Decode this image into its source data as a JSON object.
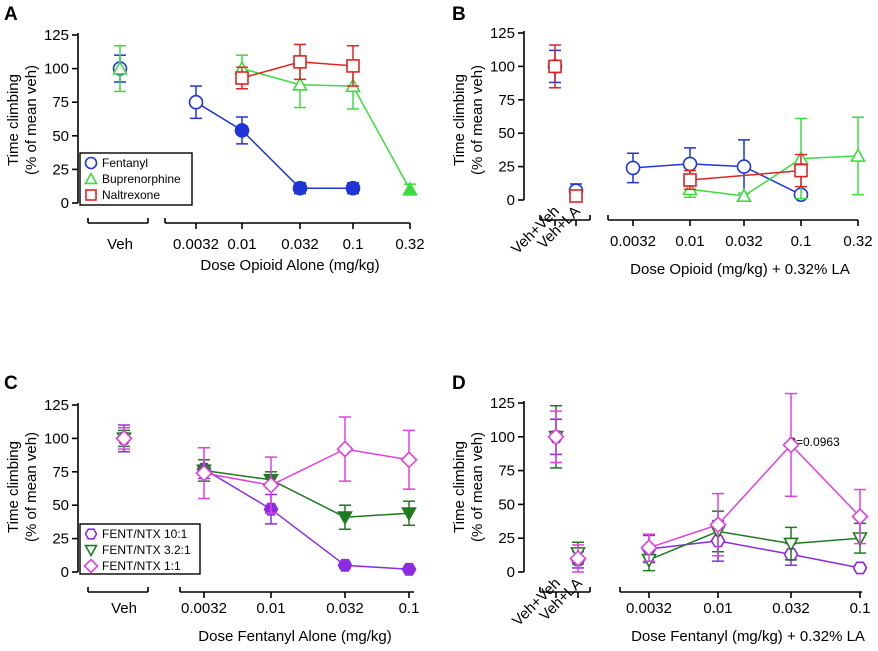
{
  "colors": {
    "fentanyl": "#1f35d6",
    "buprenorphine": "#3ddc3d",
    "naltrexone": "#e02424",
    "ratio_10_1": "#8a2be2",
    "ratio_3_2_1": "#1e7a1e",
    "ratio_1_1": "#e040e0"
  },
  "chart_data": [
    {
      "panel": "A",
      "type": "line",
      "ylabel_line1": "Time climbing",
      "ylabel_line2": "(% of mean veh)",
      "xlabel": "Dose Opioid Alone (mg/kg)",
      "ylim": [
        0,
        125
      ],
      "yticks": [
        0,
        25,
        50,
        75,
        100,
        125
      ],
      "control_labels": [
        "Veh"
      ],
      "categories": [
        "0.0032",
        "0.01",
        "0.032",
        "0.1",
        "0.32"
      ],
      "series": [
        {
          "name": "Fentanyl",
          "color_key": "fentanyl",
          "marker": "circle",
          "control": [
            {
              "x": 0,
              "y": 100,
              "err": 10,
              "filled": false
            }
          ],
          "points": [
            {
              "x": 0,
              "y": 75,
              "err": 12,
              "filled": false
            },
            {
              "x": 1,
              "y": 54,
              "err": 10,
              "filled": true
            },
            {
              "x": 2,
              "y": 11,
              "err": 4,
              "filled": true
            },
            {
              "x": 3,
              "y": 11,
              "err": 4,
              "filled": true
            }
          ]
        },
        {
          "name": "Buprenorphine",
          "color_key": "buprenorphine",
          "marker": "triangle",
          "control": [
            {
              "x": 0,
              "y": 100,
              "err": 17,
              "filled": false
            }
          ],
          "points": [
            {
              "x": 1,
              "y": 100,
              "err": 10,
              "filled": false
            },
            {
              "x": 2,
              "y": 88,
              "err": 17,
              "filled": false
            },
            {
              "x": 3,
              "y": 87,
              "err": 17,
              "filled": false
            },
            {
              "x": 4,
              "y": 10,
              "err": 4,
              "filled": true
            }
          ]
        },
        {
          "name": "Naltrexone",
          "color_key": "naltrexone",
          "marker": "square",
          "control": [],
          "points": [
            {
              "x": 1,
              "y": 93,
              "err": 8,
              "filled": false
            },
            {
              "x": 2,
              "y": 105,
              "err": 13,
              "filled": false
            },
            {
              "x": 3,
              "y": 102,
              "err": 15,
              "filled": false
            }
          ]
        }
      ],
      "legend": [
        "Fentanyl",
        "Buprenorphine",
        "Naltrexone"
      ],
      "legend_position": "bottom-left"
    },
    {
      "panel": "B",
      "type": "line",
      "ylabel_line1": "Time climbing",
      "ylabel_line2": "(% of mean veh)",
      "xlabel": "Dose Opioid (mg/kg) + 0.32% LA",
      "ylim": [
        0,
        125
      ],
      "yticks": [
        0,
        25,
        50,
        75,
        100,
        125
      ],
      "control_labels": [
        "Veh+Veh",
        "Veh+LA"
      ],
      "categories": [
        "0.0032",
        "0.01",
        "0.032",
        "0.1",
        "0.32"
      ],
      "series": [
        {
          "name": "Fentanyl",
          "color_key": "fentanyl",
          "marker": "circle",
          "control": [
            {
              "x": 0,
              "y": 100,
              "err": 12,
              "filled": false
            },
            {
              "x": 1,
              "y": 7,
              "err": 5,
              "filled": false
            }
          ],
          "points": [
            {
              "x": 0,
              "y": 24,
              "err": 11,
              "filled": false
            },
            {
              "x": 1,
              "y": 27,
              "err": 12,
              "filled": false
            },
            {
              "x": 2,
              "y": 25,
              "err": 20,
              "filled": false
            },
            {
              "x": 3,
              "y": 4,
              "err": 0,
              "filled": false
            }
          ]
        },
        {
          "name": "Buprenorphine",
          "color_key": "buprenorphine",
          "marker": "triangle",
          "control": [],
          "points": [
            {
              "x": 1,
              "y": 8,
              "err": 6,
              "filled": false
            },
            {
              "x": 2,
              "y": 3,
              "err": 2,
              "filled": false
            },
            {
              "x": 3,
              "y": 31,
              "err": 30,
              "filled": false
            },
            {
              "x": 4,
              "y": 33,
              "err": 29,
              "filled": false
            }
          ]
        },
        {
          "name": "Naltrexone",
          "color_key": "naltrexone",
          "marker": "square",
          "control": [
            {
              "x": 0,
              "y": 100,
              "err": 16,
              "filled": false
            },
            {
              "x": 1,
              "y": 3,
              "err": 3,
              "filled": false
            }
          ],
          "points": [
            {
              "x": 1,
              "y": 15,
              "err": 7,
              "filled": false
            },
            {
              "x": 3,
              "y": 22,
              "err": 12,
              "filled": false
            }
          ]
        }
      ]
    },
    {
      "panel": "C",
      "type": "line",
      "ylabel_line1": "Time climbing",
      "ylabel_line2": "(% of mean veh)",
      "xlabel": "Dose Fentanyl Alone (mg/kg)",
      "ylim": [
        0,
        125
      ],
      "yticks": [
        0,
        25,
        50,
        75,
        100,
        125
      ],
      "control_labels": [
        "Veh"
      ],
      "categories": [
        "0.0032",
        "0.01",
        "0.032",
        "0.1"
      ],
      "series": [
        {
          "name": "FENT/NTX 10:1",
          "color_key": "ratio_10_1",
          "marker": "hexagon",
          "control": [
            {
              "x": 0,
              "y": 100,
              "err": 10,
              "filled": false
            }
          ],
          "points": [
            {
              "x": 0,
              "y": 77,
              "err": 7,
              "filled": true
            },
            {
              "x": 1,
              "y": 47,
              "err": 11,
              "filled": true
            },
            {
              "x": 2,
              "y": 5,
              "err": 2,
              "filled": true
            },
            {
              "x": 3,
              "y": 2,
              "err": 1,
              "filled": true
            }
          ]
        },
        {
          "name": "FENT/NTX 3.2:1",
          "color_key": "ratio_3_2_1",
          "marker": "triangle-down",
          "control": [
            {
              "x": 0,
              "y": 100,
              "err": 6,
              "filled": false
            }
          ],
          "points": [
            {
              "x": 0,
              "y": 76,
              "err": 8,
              "filled": true
            },
            {
              "x": 1,
              "y": 69,
              "err": 6,
              "filled": true
            },
            {
              "x": 2,
              "y": 41,
              "err": 9,
              "filled": true
            },
            {
              "x": 3,
              "y": 44,
              "err": 9,
              "filled": true
            }
          ]
        },
        {
          "name": "FENT/NTX 1:1",
          "color_key": "ratio_1_1",
          "marker": "diamond",
          "control": [
            {
              "x": 0,
              "y": 100,
              "err": 8,
              "filled": false
            }
          ],
          "points": [
            {
              "x": 0,
              "y": 74,
              "err": 19,
              "filled": false
            },
            {
              "x": 1,
              "y": 65,
              "err": 21,
              "filled": false
            },
            {
              "x": 2,
              "y": 92,
              "err": 24,
              "filled": false
            },
            {
              "x": 3,
              "y": 84,
              "err": 22,
              "filled": false
            }
          ]
        }
      ],
      "legend": [
        "FENT/NTX 10:1",
        "FENT/NTX 3.2:1",
        "FENT/NTX 1:1"
      ],
      "legend_position": "bottom-left"
    },
    {
      "panel": "D",
      "type": "line",
      "ylabel_line1": "Time climbing",
      "ylabel_line2": "(% of mean veh)",
      "xlabel": "Dose Fentanyl (mg/kg) + 0.32% LA",
      "ylim": [
        0,
        125
      ],
      "yticks": [
        0,
        25,
        50,
        75,
        100,
        125
      ],
      "control_labels": [
        "Veh+Veh",
        "Veh+LA"
      ],
      "categories": [
        "0.0032",
        "0.01",
        "0.032",
        "0.1"
      ],
      "annotation": "P=0.0963",
      "series": [
        {
          "name": "FENT/NTX 10:1",
          "color_key": "ratio_10_1",
          "marker": "hexagon",
          "control": [
            {
              "x": 0,
              "y": 100,
              "err": 13,
              "filled": false
            },
            {
              "x": 1,
              "y": 9,
              "err": 6,
              "filled": false
            }
          ],
          "points": [
            {
              "x": 0,
              "y": 17,
              "err": 10,
              "filled": false
            },
            {
              "x": 1,
              "y": 23,
              "err": 15,
              "filled": false
            },
            {
              "x": 2,
              "y": 13,
              "err": 8,
              "filled": false
            },
            {
              "x": 3,
              "y": 3,
              "err": 2,
              "filled": false
            }
          ]
        },
        {
          "name": "FENT/NTX 3.2:1",
          "color_key": "ratio_3_2_1",
          "marker": "triangle-down",
          "control": [
            {
              "x": 0,
              "y": 100,
              "err": 23,
              "filled": false
            },
            {
              "x": 1,
              "y": 14,
              "err": 8,
              "filled": false
            }
          ],
          "points": [
            {
              "x": 0,
              "y": 9,
              "err": 8,
              "filled": false
            },
            {
              "x": 1,
              "y": 30,
              "err": 15,
              "filled": false
            },
            {
              "x": 2,
              "y": 21,
              "err": 12,
              "filled": false
            },
            {
              "x": 3,
              "y": 25,
              "err": 11,
              "filled": false
            }
          ]
        },
        {
          "name": "FENT/NTX 1:1",
          "color_key": "ratio_1_1",
          "marker": "diamond",
          "control": [
            {
              "x": 0,
              "y": 100,
              "err": 19,
              "filled": false
            },
            {
              "x": 1,
              "y": 10,
              "err": 10,
              "filled": false
            }
          ],
          "points": [
            {
              "x": 0,
              "y": 18,
              "err": 10,
              "filled": false
            },
            {
              "x": 1,
              "y": 35,
              "err": 23,
              "filled": false
            },
            {
              "x": 2,
              "y": 94,
              "err": 38,
              "filled": false
            },
            {
              "x": 3,
              "y": 41,
              "err": 20,
              "filled": false
            }
          ]
        }
      ]
    }
  ]
}
